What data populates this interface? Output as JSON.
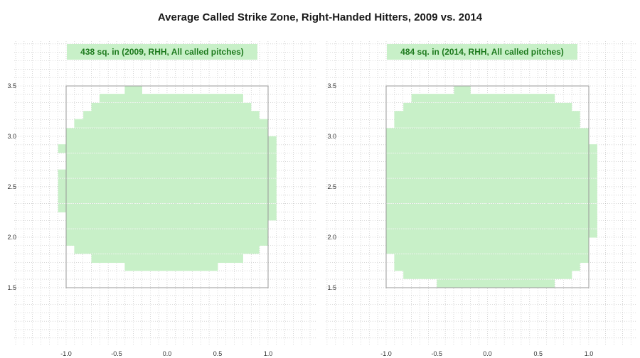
{
  "title": "Average Called Strike Zone, Right-Handed Hitters, 2009 vs. 2014",
  "colors": {
    "zone": "#c8f0c8",
    "label_bg": "#c8f0c8",
    "label_text": "#1e7b1e",
    "grid": "#bdbdbd",
    "frame": "#999999"
  },
  "chart_data": [
    {
      "type": "heatmap",
      "label": "438 sq. in (2009, RHH, All called pitches)",
      "x_ticks": [
        "-1.0",
        "-0.5",
        "0.0",
        "0.5",
        "1.0"
      ],
      "y_ticks": [
        "1.5",
        "2.0",
        "2.5",
        "3.0",
        "3.5"
      ],
      "xlim": [
        -1.0,
        1.0
      ],
      "ylim": [
        1.5,
        3.5
      ],
      "cell_size": 0.0833,
      "zone_rows": [
        {
          "y": 3.46,
          "x_min": -0.42,
          "x_max": -0.33
        },
        {
          "y": 3.38,
          "x_min": -0.67,
          "x_max": 0.67
        },
        {
          "y": 3.29,
          "x_min": -0.75,
          "x_max": 0.75
        },
        {
          "y": 3.21,
          "x_min": -0.83,
          "x_max": 0.83
        },
        {
          "y": 3.13,
          "x_min": -0.92,
          "x_max": 0.92
        },
        {
          "y": 3.04,
          "x_min": -1.0,
          "x_max": 0.92
        },
        {
          "y": 2.96,
          "x_min": -1.0,
          "x_max": 1.0
        },
        {
          "y": 2.88,
          "x_min": -1.08,
          "x_max": 1.0
        },
        {
          "y": 2.79,
          "x_min": -1.0,
          "x_max": 1.0
        },
        {
          "y": 2.71,
          "x_min": -1.0,
          "x_max": 1.0
        },
        {
          "y": 2.63,
          "x_min": -1.08,
          "x_max": 1.0
        },
        {
          "y": 2.54,
          "x_min": -1.08,
          "x_max": 1.0
        },
        {
          "y": 2.46,
          "x_min": -1.08,
          "x_max": 1.0
        },
        {
          "y": 2.38,
          "x_min": -1.08,
          "x_max": 1.0
        },
        {
          "y": 2.29,
          "x_min": -1.08,
          "x_max": 1.0
        },
        {
          "y": 2.21,
          "x_min": -1.0,
          "x_max": 1.0
        },
        {
          "y": 2.13,
          "x_min": -1.0,
          "x_max": 0.92
        },
        {
          "y": 2.04,
          "x_min": -1.0,
          "x_max": 0.92
        },
        {
          "y": 1.96,
          "x_min": -1.0,
          "x_max": 0.92
        },
        {
          "y": 1.88,
          "x_min": -0.92,
          "x_max": 0.83
        },
        {
          "y": 1.79,
          "x_min": -0.75,
          "x_max": 0.67
        },
        {
          "y": 1.71,
          "x_min": -0.42,
          "x_max": 0.42
        }
      ]
    },
    {
      "type": "heatmap",
      "label": "484 sq. in (2014, RHH, All called pitches)",
      "x_ticks": [
        "-1.0",
        "-0.5",
        "0.0",
        "0.5",
        "1.0"
      ],
      "y_ticks": [
        "1.5",
        "2.0",
        "2.5",
        "3.0",
        "3.5"
      ],
      "xlim": [
        -1.0,
        1.0
      ],
      "ylim": [
        1.5,
        3.5
      ],
      "cell_size": 0.0833,
      "zone_rows": [
        {
          "y": 3.46,
          "x_min": -0.33,
          "x_max": -0.25
        },
        {
          "y": 3.38,
          "x_min": -0.75,
          "x_max": 0.58
        },
        {
          "y": 3.29,
          "x_min": -0.83,
          "x_max": 0.75
        },
        {
          "y": 3.21,
          "x_min": -0.92,
          "x_max": 0.83
        },
        {
          "y": 3.13,
          "x_min": -0.92,
          "x_max": 0.83
        },
        {
          "y": 3.04,
          "x_min": -1.0,
          "x_max": 0.92
        },
        {
          "y": 2.96,
          "x_min": -1.0,
          "x_max": 0.92
        },
        {
          "y": 2.88,
          "x_min": -1.0,
          "x_max": 1.0
        },
        {
          "y": 2.79,
          "x_min": -1.0,
          "x_max": 1.0
        },
        {
          "y": 2.71,
          "x_min": -1.0,
          "x_max": 1.0
        },
        {
          "y": 2.63,
          "x_min": -1.0,
          "x_max": 1.0
        },
        {
          "y": 2.54,
          "x_min": -1.0,
          "x_max": 1.0
        },
        {
          "y": 2.46,
          "x_min": -1.0,
          "x_max": 1.0
        },
        {
          "y": 2.38,
          "x_min": -1.0,
          "x_max": 1.0
        },
        {
          "y": 2.29,
          "x_min": -1.0,
          "x_max": 1.0
        },
        {
          "y": 2.21,
          "x_min": -1.0,
          "x_max": 1.0
        },
        {
          "y": 2.13,
          "x_min": -1.0,
          "x_max": 1.0
        },
        {
          "y": 2.04,
          "x_min": -1.0,
          "x_max": 1.0
        },
        {
          "y": 1.96,
          "x_min": -1.0,
          "x_max": 0.92
        },
        {
          "y": 1.88,
          "x_min": -1.0,
          "x_max": 0.92
        },
        {
          "y": 1.79,
          "x_min": -0.92,
          "x_max": 0.92
        },
        {
          "y": 1.71,
          "x_min": -0.92,
          "x_max": 0.83
        },
        {
          "y": 1.63,
          "x_min": -0.83,
          "x_max": 0.75
        },
        {
          "y": 1.54,
          "x_min": -0.5,
          "x_max": 0.58
        }
      ]
    }
  ]
}
